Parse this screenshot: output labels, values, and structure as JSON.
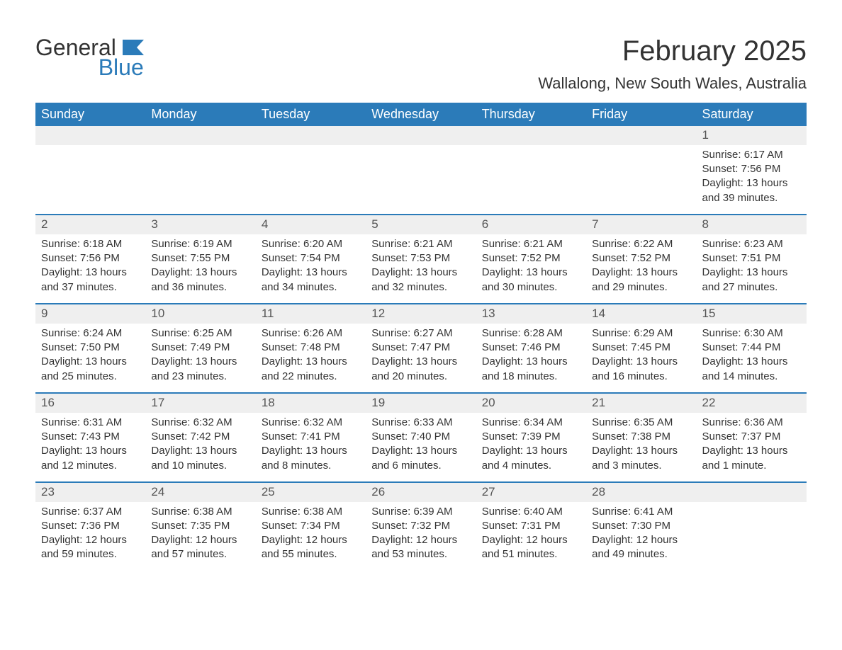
{
  "logo": {
    "word1": "General",
    "word2": "Blue"
  },
  "title": "February 2025",
  "location": "Wallalong, New South Wales, Australia",
  "colors": {
    "header_bg": "#2b7bb9",
    "header_text": "#ffffff",
    "daynum_bg": "#efefef",
    "row_border": "#2b7bb9",
    "body_text": "#333333",
    "page_bg": "#ffffff"
  },
  "fonts": {
    "title_size": 40,
    "location_size": 22,
    "header_size": 18,
    "body_size": 15
  },
  "day_names": [
    "Sunday",
    "Monday",
    "Tuesday",
    "Wednesday",
    "Thursday",
    "Friday",
    "Saturday"
  ],
  "weeks": [
    [
      null,
      null,
      null,
      null,
      null,
      null,
      {
        "n": "1",
        "sunrise": "Sunrise: 6:17 AM",
        "sunset": "Sunset: 7:56 PM",
        "d1": "Daylight: 13 hours",
        "d2": "and 39 minutes."
      }
    ],
    [
      {
        "n": "2",
        "sunrise": "Sunrise: 6:18 AM",
        "sunset": "Sunset: 7:56 PM",
        "d1": "Daylight: 13 hours",
        "d2": "and 37 minutes."
      },
      {
        "n": "3",
        "sunrise": "Sunrise: 6:19 AM",
        "sunset": "Sunset: 7:55 PM",
        "d1": "Daylight: 13 hours",
        "d2": "and 36 minutes."
      },
      {
        "n": "4",
        "sunrise": "Sunrise: 6:20 AM",
        "sunset": "Sunset: 7:54 PM",
        "d1": "Daylight: 13 hours",
        "d2": "and 34 minutes."
      },
      {
        "n": "5",
        "sunrise": "Sunrise: 6:21 AM",
        "sunset": "Sunset: 7:53 PM",
        "d1": "Daylight: 13 hours",
        "d2": "and 32 minutes."
      },
      {
        "n": "6",
        "sunrise": "Sunrise: 6:21 AM",
        "sunset": "Sunset: 7:52 PM",
        "d1": "Daylight: 13 hours",
        "d2": "and 30 minutes."
      },
      {
        "n": "7",
        "sunrise": "Sunrise: 6:22 AM",
        "sunset": "Sunset: 7:52 PM",
        "d1": "Daylight: 13 hours",
        "d2": "and 29 minutes."
      },
      {
        "n": "8",
        "sunrise": "Sunrise: 6:23 AM",
        "sunset": "Sunset: 7:51 PM",
        "d1": "Daylight: 13 hours",
        "d2": "and 27 minutes."
      }
    ],
    [
      {
        "n": "9",
        "sunrise": "Sunrise: 6:24 AM",
        "sunset": "Sunset: 7:50 PM",
        "d1": "Daylight: 13 hours",
        "d2": "and 25 minutes."
      },
      {
        "n": "10",
        "sunrise": "Sunrise: 6:25 AM",
        "sunset": "Sunset: 7:49 PM",
        "d1": "Daylight: 13 hours",
        "d2": "and 23 minutes."
      },
      {
        "n": "11",
        "sunrise": "Sunrise: 6:26 AM",
        "sunset": "Sunset: 7:48 PM",
        "d1": "Daylight: 13 hours",
        "d2": "and 22 minutes."
      },
      {
        "n": "12",
        "sunrise": "Sunrise: 6:27 AM",
        "sunset": "Sunset: 7:47 PM",
        "d1": "Daylight: 13 hours",
        "d2": "and 20 minutes."
      },
      {
        "n": "13",
        "sunrise": "Sunrise: 6:28 AM",
        "sunset": "Sunset: 7:46 PM",
        "d1": "Daylight: 13 hours",
        "d2": "and 18 minutes."
      },
      {
        "n": "14",
        "sunrise": "Sunrise: 6:29 AM",
        "sunset": "Sunset: 7:45 PM",
        "d1": "Daylight: 13 hours",
        "d2": "and 16 minutes."
      },
      {
        "n": "15",
        "sunrise": "Sunrise: 6:30 AM",
        "sunset": "Sunset: 7:44 PM",
        "d1": "Daylight: 13 hours",
        "d2": "and 14 minutes."
      }
    ],
    [
      {
        "n": "16",
        "sunrise": "Sunrise: 6:31 AM",
        "sunset": "Sunset: 7:43 PM",
        "d1": "Daylight: 13 hours",
        "d2": "and 12 minutes."
      },
      {
        "n": "17",
        "sunrise": "Sunrise: 6:32 AM",
        "sunset": "Sunset: 7:42 PM",
        "d1": "Daylight: 13 hours",
        "d2": "and 10 minutes."
      },
      {
        "n": "18",
        "sunrise": "Sunrise: 6:32 AM",
        "sunset": "Sunset: 7:41 PM",
        "d1": "Daylight: 13 hours",
        "d2": "and 8 minutes."
      },
      {
        "n": "19",
        "sunrise": "Sunrise: 6:33 AM",
        "sunset": "Sunset: 7:40 PM",
        "d1": "Daylight: 13 hours",
        "d2": "and 6 minutes."
      },
      {
        "n": "20",
        "sunrise": "Sunrise: 6:34 AM",
        "sunset": "Sunset: 7:39 PM",
        "d1": "Daylight: 13 hours",
        "d2": "and 4 minutes."
      },
      {
        "n": "21",
        "sunrise": "Sunrise: 6:35 AM",
        "sunset": "Sunset: 7:38 PM",
        "d1": "Daylight: 13 hours",
        "d2": "and 3 minutes."
      },
      {
        "n": "22",
        "sunrise": "Sunrise: 6:36 AM",
        "sunset": "Sunset: 7:37 PM",
        "d1": "Daylight: 13 hours",
        "d2": "and 1 minute."
      }
    ],
    [
      {
        "n": "23",
        "sunrise": "Sunrise: 6:37 AM",
        "sunset": "Sunset: 7:36 PM",
        "d1": "Daylight: 12 hours",
        "d2": "and 59 minutes."
      },
      {
        "n": "24",
        "sunrise": "Sunrise: 6:38 AM",
        "sunset": "Sunset: 7:35 PM",
        "d1": "Daylight: 12 hours",
        "d2": "and 57 minutes."
      },
      {
        "n": "25",
        "sunrise": "Sunrise: 6:38 AM",
        "sunset": "Sunset: 7:34 PM",
        "d1": "Daylight: 12 hours",
        "d2": "and 55 minutes."
      },
      {
        "n": "26",
        "sunrise": "Sunrise: 6:39 AM",
        "sunset": "Sunset: 7:32 PM",
        "d1": "Daylight: 12 hours",
        "d2": "and 53 minutes."
      },
      {
        "n": "27",
        "sunrise": "Sunrise: 6:40 AM",
        "sunset": "Sunset: 7:31 PM",
        "d1": "Daylight: 12 hours",
        "d2": "and 51 minutes."
      },
      {
        "n": "28",
        "sunrise": "Sunrise: 6:41 AM",
        "sunset": "Sunset: 7:30 PM",
        "d1": "Daylight: 12 hours",
        "d2": "and 49 minutes."
      },
      null
    ]
  ]
}
